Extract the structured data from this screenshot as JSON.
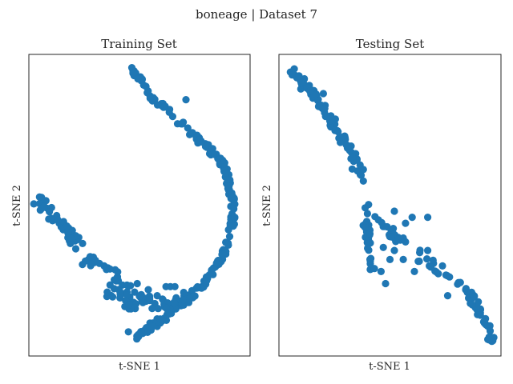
{
  "figure": {
    "title": "boneage | Dataset 7"
  },
  "chart_data": [
    {
      "type": "scatter",
      "title": "Training Set",
      "xlabel": "t-SNE 1",
      "ylabel": "t-SNE 2",
      "xlim": [
        0,
        100
      ],
      "ylim": [
        0,
        100
      ],
      "grid": false,
      "ticks": false,
      "color": "#1f77b4",
      "segments": [
        {
          "path": [
            [
              47,
              95
            ],
            [
              49,
              93
            ],
            [
              51,
              91
            ],
            [
              53,
              89
            ],
            [
              55,
              87
            ],
            [
              57,
              85
            ],
            [
              60,
              83
            ],
            [
              63,
              81
            ],
            [
              66,
              79
            ],
            [
              69,
              77
            ],
            [
              72,
              75
            ],
            [
              75,
              73
            ],
            [
              78,
              71
            ],
            [
              81,
              69
            ],
            [
              84,
              67
            ],
            [
              86,
              65
            ],
            [
              88,
              63
            ],
            [
              89,
              61
            ],
            [
              90,
              59
            ],
            [
              90,
              57
            ],
            [
              91,
              55
            ],
            [
              92,
              53
            ],
            [
              92,
              51
            ],
            [
              93,
              49
            ],
            [
              93,
              47
            ],
            [
              92,
              45
            ],
            [
              92,
              43
            ],
            [
              91,
              41
            ],
            [
              91,
              39
            ],
            [
              90,
              37
            ],
            [
              89,
              35
            ],
            [
              88,
              34
            ],
            [
              87,
              33
            ],
            [
              85,
              31
            ],
            [
              84,
              29
            ],
            [
              82,
              27
            ],
            [
              80,
              25
            ],
            [
              78,
              23
            ],
            [
              76,
              22
            ],
            [
              74,
              20
            ],
            [
              72,
              19
            ],
            [
              70,
              18
            ],
            [
              68,
              17
            ],
            [
              66,
              16
            ],
            [
              64,
              15
            ],
            [
              62,
              13
            ],
            [
              60,
              12
            ],
            [
              58,
              11
            ],
            [
              56,
              10
            ],
            [
              54,
              9
            ],
            [
              52,
              8
            ],
            [
              50,
              7
            ],
            [
              48,
              6
            ]
          ],
          "n": 250,
          "spread": 1.1
        },
        {
          "path": [
            [
              4,
              52
            ],
            [
              8,
              49
            ],
            [
              12,
              46
            ],
            [
              16,
              43
            ],
            [
              19,
              40
            ],
            [
              22,
              37
            ],
            [
              24,
              35
            ]
          ],
          "n": 45,
          "spread": 1.8
        },
        {
          "path": [
            [
              24,
              32
            ],
            [
              28,
              32
            ],
            [
              32,
              30
            ],
            [
              36,
              28
            ],
            [
              40,
              26
            ],
            [
              43,
              23
            ],
            [
              46,
              21
            ],
            [
              50,
              19
            ],
            [
              54,
              18
            ],
            [
              58,
              17
            ],
            [
              62,
              17
            ],
            [
              66,
              18
            ],
            [
              70,
              19
            ],
            [
              74,
              20
            ]
          ],
          "n": 75,
          "spread": 2.0
        },
        {
          "path": [
            [
              36,
              22
            ],
            [
              40,
              20
            ],
            [
              44,
              18
            ],
            [
              48,
              17
            ]
          ],
          "n": 20,
          "spread": 2.0
        }
      ],
      "extra_points": [
        [
          71,
          85
        ],
        [
          45,
          8
        ],
        [
          64,
          23
        ],
        [
          62,
          23
        ],
        [
          66,
          23
        ],
        [
          49,
          24
        ],
        [
          54,
          22
        ],
        [
          58,
          20
        ]
      ]
    },
    {
      "type": "scatter",
      "title": "Testing Set",
      "xlabel": "t-SNE 1",
      "ylabel": "t-SNE 2",
      "xlim": [
        0,
        100
      ],
      "ylim": [
        0,
        100
      ],
      "grid": false,
      "ticks": false,
      "color": "#1f77b4",
      "segments": [
        {
          "path": [
            [
              5,
              95
            ],
            [
              8,
              93
            ],
            [
              11,
              90
            ],
            [
              15,
              87
            ],
            [
              18,
              84
            ],
            [
              21,
              81
            ],
            [
              24,
              78
            ],
            [
              27,
              74
            ],
            [
              30,
              71
            ],
            [
              33,
              67
            ],
            [
              36,
              63
            ],
            [
              38,
              59
            ]
          ],
          "n": 80,
          "spread": 1.5
        },
        {
          "path": [
            [
              40,
              50
            ],
            [
              40,
              47
            ],
            [
              39,
              44
            ],
            [
              40,
              41
            ],
            [
              40,
              38
            ],
            [
              40,
              36
            ],
            [
              41,
              33
            ],
            [
              40,
              30
            ],
            [
              41,
              28
            ]
          ],
          "n": 25,
          "spread": 1.2
        },
        {
          "path": [
            [
              42,
              47
            ],
            [
              46,
              44
            ],
            [
              50,
              41
            ],
            [
              54,
              39
            ],
            [
              58,
              37
            ],
            [
              62,
              34
            ],
            [
              66,
              32
            ],
            [
              70,
              30
            ],
            [
              74,
              28
            ],
            [
              78,
              26
            ],
            [
              82,
              24
            ],
            [
              86,
              21
            ],
            [
              88,
              18
            ],
            [
              90,
              15
            ],
            [
              92,
              13
            ],
            [
              94,
              11
            ],
            [
              95,
              7
            ],
            [
              96,
              5
            ]
          ],
          "n": 80,
          "spread": 1.6
        }
      ],
      "extra_points": [
        [
          20,
          87
        ],
        [
          33,
          62
        ],
        [
          38,
          58
        ],
        [
          60,
          46
        ],
        [
          67,
          46
        ],
        [
          52,
          48
        ],
        [
          57,
          44
        ],
        [
          43,
          29
        ],
        [
          46,
          28
        ],
        [
          47,
          36
        ],
        [
          50,
          32
        ],
        [
          56,
          32
        ],
        [
          61,
          28
        ],
        [
          67,
          35
        ],
        [
          48,
          24
        ],
        [
          76,
          20
        ],
        [
          52,
          35
        ]
      ]
    }
  ]
}
